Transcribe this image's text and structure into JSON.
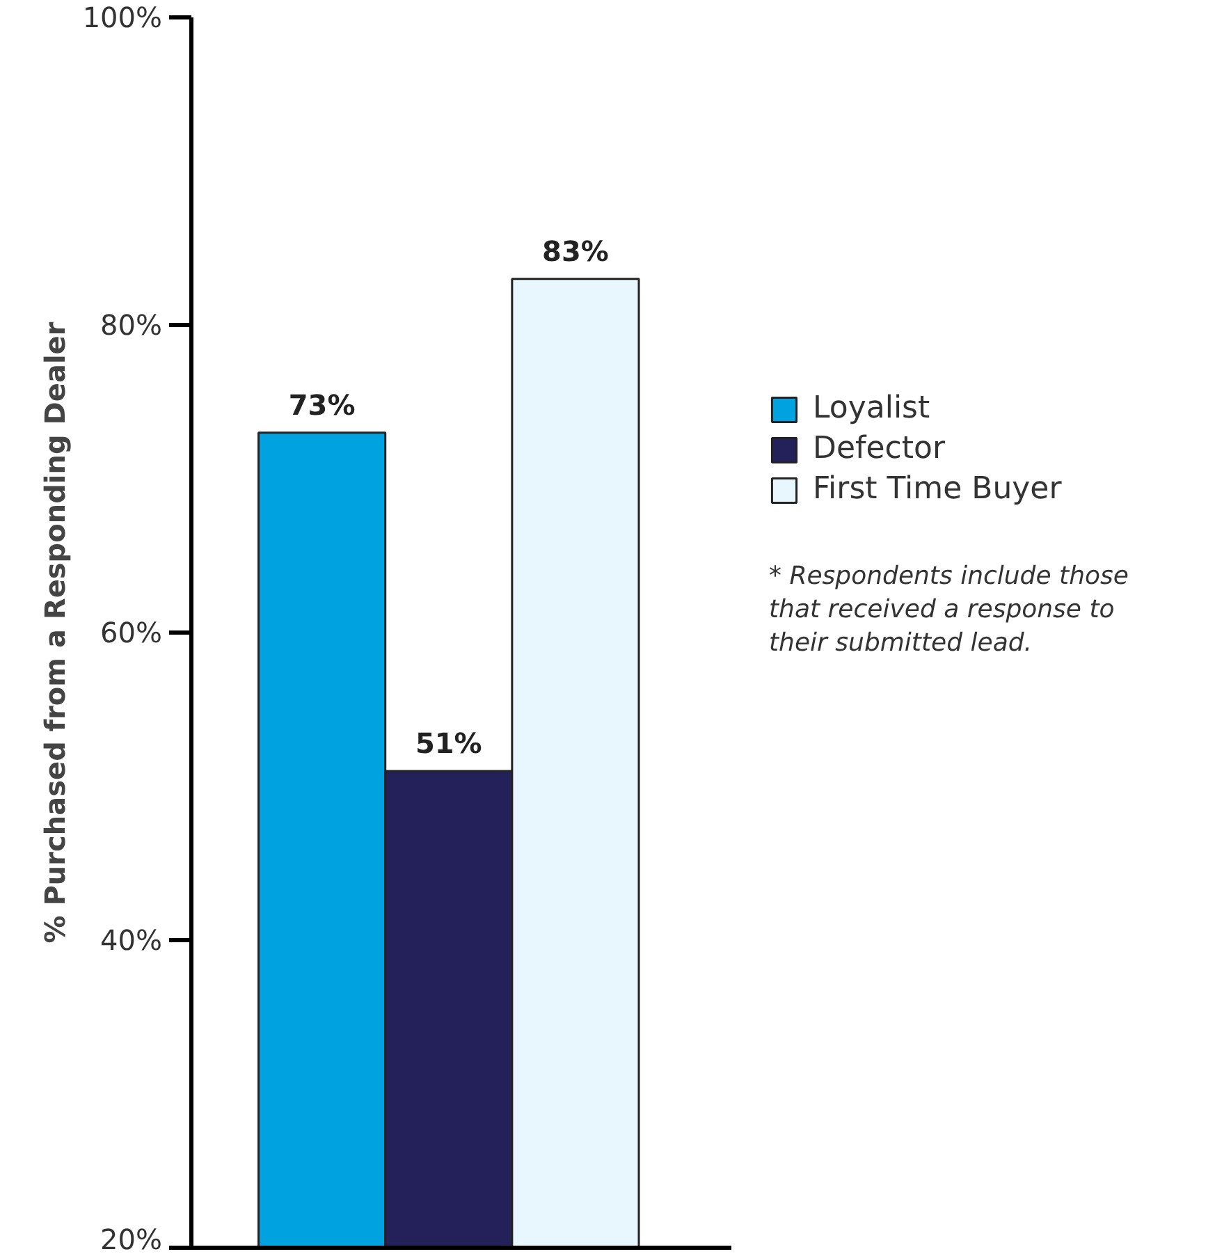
{
  "chart_data": {
    "type": "bar",
    "ylabel": "% Purchased from a Responding Dealer",
    "categories": [
      null
    ],
    "series": [
      {
        "name": "Loyalist",
        "color": "#00a3e0",
        "values": [
          73
        ],
        "value_labels": [
          "73%"
        ]
      },
      {
        "name": "Defector",
        "color": "#24205a",
        "values": [
          51
        ],
        "value_labels": [
          "51%"
        ]
      },
      {
        "name": "First Time Buyer",
        "color": "#e8f6fd",
        "values": [
          83
        ],
        "value_labels": [
          "83%"
        ]
      }
    ],
    "ylim": [
      20,
      100
    ],
    "yticks": [
      {
        "value": 20,
        "label": "20%"
      },
      {
        "value": 40,
        "label": "40%"
      },
      {
        "value": 60,
        "label": "60%"
      },
      {
        "value": 80,
        "label": "80%"
      },
      {
        "value": 100,
        "label": "100%"
      }
    ],
    "tick_labels": "y",
    "grid": false,
    "legend": "right",
    "annotations": [
      "* Respondents include those that received a response to their submitted lead."
    ]
  }
}
